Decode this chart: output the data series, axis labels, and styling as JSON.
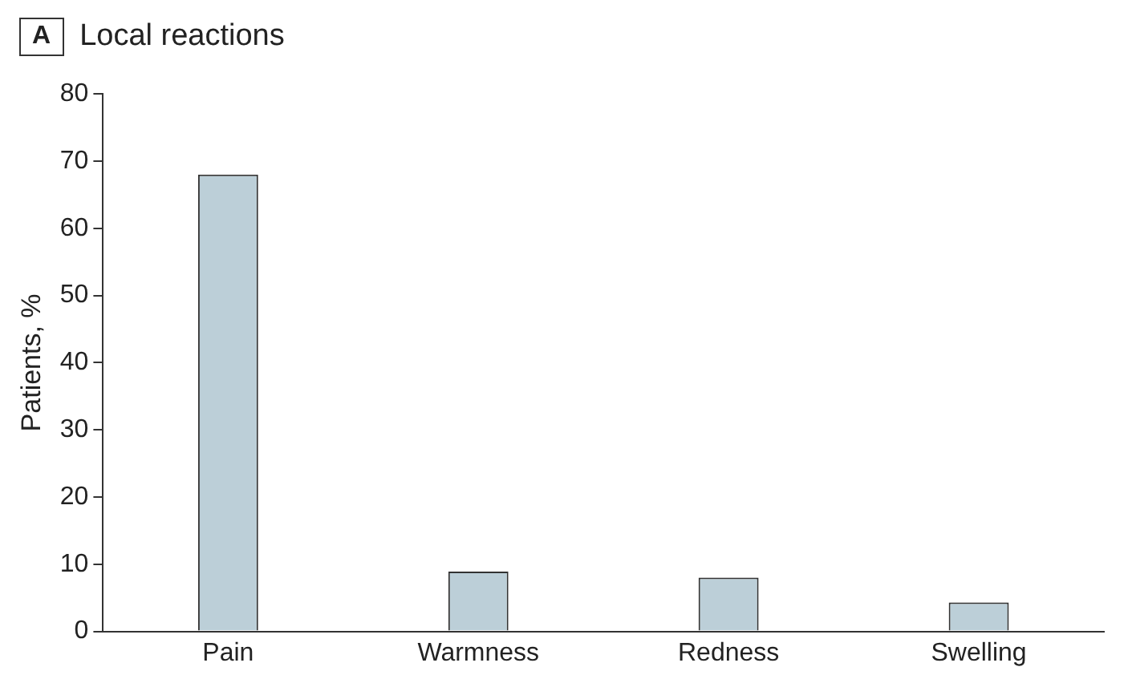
{
  "chart_data": {
    "type": "bar",
    "title": "Local reactions",
    "annotations": [
      "A"
    ],
    "ylabel": "Patients, %",
    "categories": [
      "Pain",
      "Warmness",
      "Redness",
      "Swelling"
    ],
    "values": [
      68,
      8.9,
      8,
      4.3
    ],
    "color": "#bccfd8",
    "ylim": [
      0,
      80
    ],
    "yticks": [
      0,
      10,
      20,
      30,
      40,
      50,
      60,
      70,
      80
    ],
    "grid": false,
    "legend": false
  }
}
